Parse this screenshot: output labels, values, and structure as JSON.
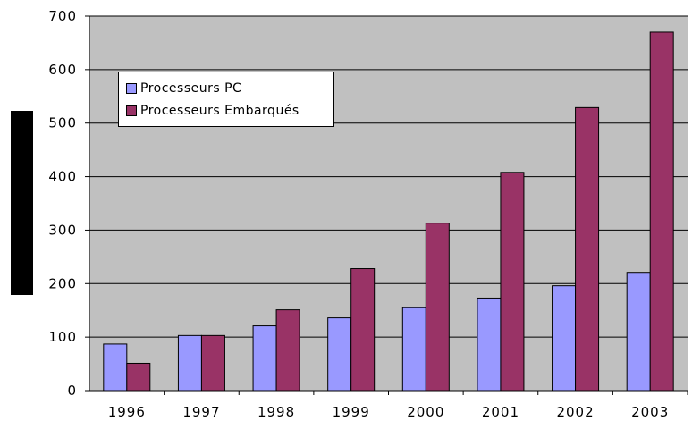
{
  "chart_data": {
    "type": "bar",
    "title": "",
    "xlabel": "",
    "ylabel": "",
    "categories": [
      "1996",
      "1997",
      "1998",
      "1999",
      "2000",
      "2001",
      "2002",
      "2003"
    ],
    "series": [
      {
        "name": "Processeurs PC",
        "color": "#9999ff",
        "values": [
          87,
          103,
          121,
          136,
          155,
          173,
          196,
          221
        ]
      },
      {
        "name": "Processeurs Embarqués",
        "color": "#993366",
        "values": [
          51,
          103,
          151,
          228,
          313,
          408,
          529,
          670
        ]
      }
    ],
    "ylim": [
      0,
      700
    ],
    "yticks": [
      0,
      100,
      200,
      300,
      400,
      500,
      600,
      700
    ],
    "grid": true,
    "legend_position": "top-left",
    "plot_background": "#c0c0c0"
  }
}
